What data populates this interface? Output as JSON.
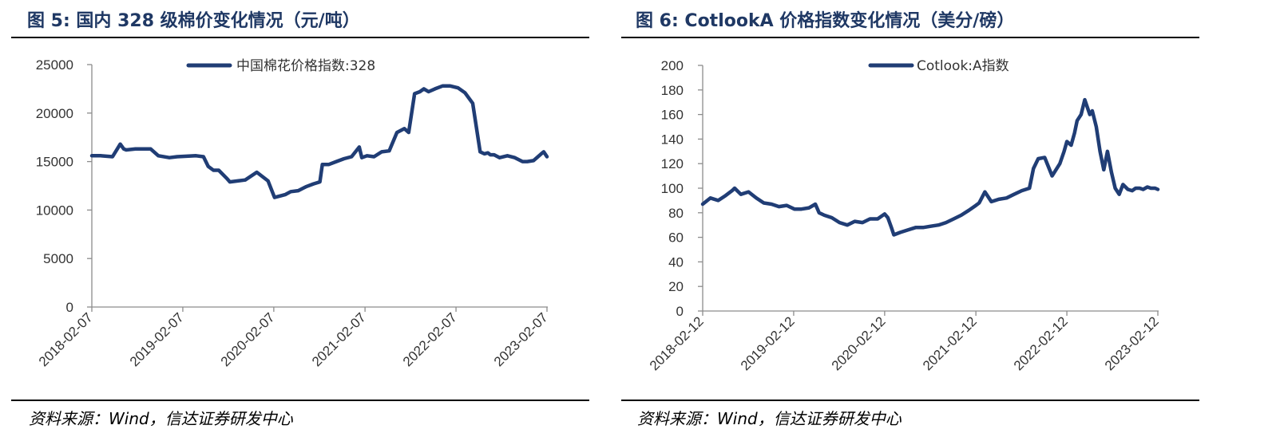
{
  "figures": [
    {
      "title": "图  5:  国内 328 级棉价变化情况（元/吨）",
      "source": "资料来源：Wind，信达证券研发中心"
    },
    {
      "title": "图  6:  CotlookA 价格指数变化情况（美分/磅）",
      "source": "资料来源：Wind，信达证券研发中心"
    }
  ],
  "chart_data": [
    {
      "type": "line",
      "title": "",
      "xlabel": "",
      "ylabel": "",
      "ylim": [
        0,
        25000
      ],
      "yticks": [
        "0",
        "5000",
        "10000",
        "15000",
        "20000",
        "25000"
      ],
      "xticks": [
        "2018-02-07",
        "2019-02-07",
        "2020-02-07",
        "2021-02-07",
        "2022-02-07",
        "2023-02-07"
      ],
      "legend_position": "top-center",
      "grid": false,
      "series": [
        {
          "name": "中国棉花价格指数:328",
          "color": "#203d75",
          "x": [
            "2018-02-07",
            "2018-03-15",
            "2018-05-01",
            "2018-06-01",
            "2018-06-15",
            "2018-06-25",
            "2018-08-01",
            "2018-10-01",
            "2018-11-01",
            "2018-12-15",
            "2019-01-15",
            "2019-04-01",
            "2019-05-01",
            "2019-05-20",
            "2019-06-10",
            "2019-07-01",
            "2019-08-01",
            "2019-08-15",
            "2019-09-15",
            "2019-10-15",
            "2019-12-01",
            "2020-01-15",
            "2020-02-10",
            "2020-03-10",
            "2020-03-25",
            "2020-04-15",
            "2020-05-15",
            "2020-06-15",
            "2020-07-15",
            "2020-08-10",
            "2020-08-20",
            "2020-09-15",
            "2020-10-15",
            "2020-11-15",
            "2020-12-15",
            "2021-01-15",
            "2021-01-25",
            "2021-02-15",
            "2021-03-15",
            "2021-04-15",
            "2021-05-15",
            "2021-06-15",
            "2021-07-15",
            "2021-08-01",
            "2021-08-25",
            "2021-09-15",
            "2021-10-01",
            "2021-10-20",
            "2021-11-15",
            "2021-12-15",
            "2022-01-15",
            "2022-02-15",
            "2022-03-15",
            "2022-04-15",
            "2022-05-15",
            "2022-06-01",
            "2022-06-15",
            "2022-06-25",
            "2022-07-10",
            "2022-08-01",
            "2022-09-01",
            "2022-10-01",
            "2022-11-01",
            "2022-11-20",
            "2022-12-15",
            "2023-01-15",
            "2023-01-25",
            "2023-02-07"
          ],
          "values": [
            15600,
            15600,
            15500,
            16800,
            16300,
            16200,
            16300,
            16300,
            15600,
            15400,
            15500,
            15600,
            15500,
            14500,
            14100,
            14100,
            13300,
            12900,
            13000,
            13100,
            13900,
            13000,
            11300,
            11500,
            11600,
            11900,
            12000,
            12400,
            12700,
            12900,
            14700,
            14700,
            15000,
            15300,
            15500,
            16500,
            15400,
            15600,
            15500,
            16000,
            16100,
            18000,
            18400,
            18000,
            22000,
            22200,
            22500,
            22200,
            22500,
            22800,
            22800,
            22600,
            22100,
            21000,
            16000,
            15800,
            15900,
            15700,
            15700,
            15400,
            15600,
            15400,
            15000,
            15000,
            15100,
            15800,
            16000,
            15500
          ]
        }
      ]
    },
    {
      "type": "line",
      "title": "",
      "xlabel": "",
      "ylabel": "",
      "ylim": [
        0,
        200
      ],
      "yticks": [
        "0",
        "20",
        "40",
        "60",
        "80",
        "100",
        "120",
        "140",
        "160",
        "180",
        "200"
      ],
      "xticks": [
        "2018-02-12",
        "2019-02-12",
        "2020-02-12",
        "2021-02-12",
        "2022-02-12",
        "2023-02-12"
      ],
      "legend_position": "top-center",
      "grid": false,
      "series": [
        {
          "name": "Cotlook:A指数",
          "color": "#203d75",
          "x": [
            "2018-02-12",
            "2018-03-15",
            "2018-04-15",
            "2018-05-15",
            "2018-06-10",
            "2018-06-20",
            "2018-07-15",
            "2018-08-15",
            "2018-09-15",
            "2018-10-15",
            "2018-11-15",
            "2018-12-15",
            "2019-01-15",
            "2019-02-15",
            "2019-03-15",
            "2019-04-15",
            "2019-05-10",
            "2019-05-25",
            "2019-06-15",
            "2019-07-15",
            "2019-08-15",
            "2019-09-15",
            "2019-10-15",
            "2019-11-15",
            "2019-12-15",
            "2020-01-15",
            "2020-02-12",
            "2020-02-25",
            "2020-03-10",
            "2020-03-20",
            "2020-04-15",
            "2020-05-15",
            "2020-06-15",
            "2020-07-15",
            "2020-08-15",
            "2020-09-15",
            "2020-10-15",
            "2020-11-15",
            "2020-12-15",
            "2021-01-15",
            "2021-02-12",
            "2021-02-25",
            "2021-03-20",
            "2021-04-15",
            "2021-05-15",
            "2021-06-15",
            "2021-07-15",
            "2021-08-15",
            "2021-09-15",
            "2021-10-01",
            "2021-10-20",
            "2021-11-15",
            "2021-12-15",
            "2022-01-15",
            "2022-02-01",
            "2022-02-12",
            "2022-03-01",
            "2022-03-15",
            "2022-03-25",
            "2022-04-10",
            "2022-04-25",
            "2022-05-15",
            "2022-05-25",
            "2022-06-10",
            "2022-06-25",
            "2022-07-10",
            "2022-07-25",
            "2022-08-10",
            "2022-08-25",
            "2022-09-10",
            "2022-09-25",
            "2022-10-15",
            "2022-11-01",
            "2022-11-15",
            "2022-12-01",
            "2022-12-15",
            "2023-01-01",
            "2023-01-15",
            "2023-02-01",
            "2023-02-12"
          ],
          "values": [
            87,
            92,
            90,
            94,
            98,
            100,
            95,
            97,
            92,
            88,
            87,
            85,
            86,
            83,
            83,
            84,
            87,
            80,
            78,
            76,
            72,
            70,
            73,
            72,
            75,
            75,
            79,
            76,
            68,
            62,
            64,
            66,
            68,
            68,
            69,
            70,
            72,
            75,
            78,
            82,
            86,
            88,
            97,
            89,
            91,
            92,
            95,
            98,
            100,
            116,
            124,
            125,
            110,
            120,
            130,
            138,
            135,
            145,
            155,
            160,
            172,
            160,
            163,
            150,
            130,
            115,
            130,
            113,
            100,
            95,
            103,
            99,
            98,
            100,
            100,
            99,
            101,
            100,
            100,
            99
          ]
        }
      ]
    }
  ]
}
